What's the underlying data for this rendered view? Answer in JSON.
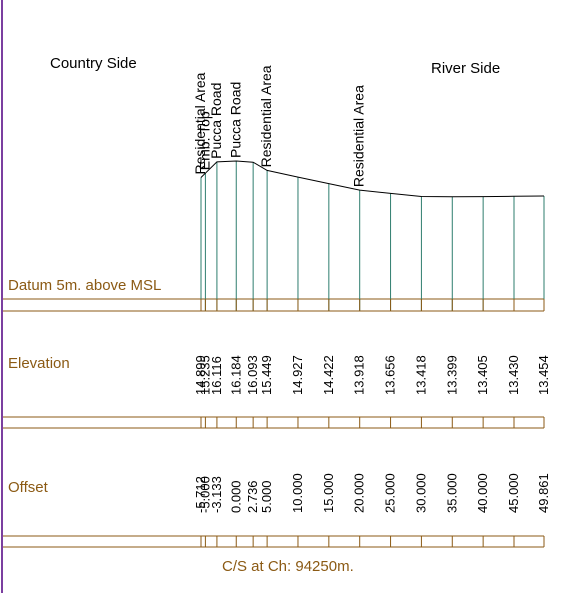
{
  "header": {
    "left_label": "Country Side",
    "right_label": "River Side"
  },
  "rows": {
    "datum": "Datum 5m. above MSL",
    "elevation": "Elevation",
    "offset": "Offset"
  },
  "footer": {
    "caption": "C/S at Ch: 94250m."
  },
  "feature_labels": [
    {
      "text": "Residential Area",
      "offset": -5.712
    },
    {
      "text": "Emb. Top",
      "offset": -5.0
    },
    {
      "text": "Pucca Road",
      "offset": -3.133
    },
    {
      "text": "Pucca Road",
      "offset": 0.0
    },
    {
      "text": "Residential Area",
      "offset": 5.0
    },
    {
      "text": "Residential Area",
      "offset": 20.0
    }
  ],
  "stations": [
    {
      "offset": -5.712,
      "offset_label": "-5.712",
      "elevation": 14.899,
      "elevation_label": "14.899"
    },
    {
      "offset": -5.0,
      "offset_label": "-5.000",
      "elevation": 15.235,
      "elevation_label": "15.235"
    },
    {
      "offset": -3.133,
      "offset_label": "-3.133",
      "elevation": 16.116,
      "elevation_label": "16.116"
    },
    {
      "offset": 0.0,
      "offset_label": "0.000",
      "elevation": 16.184,
      "elevation_label": "16.184"
    },
    {
      "offset": 2.736,
      "offset_label": "2.736",
      "elevation": 16.093,
      "elevation_label": "16.093"
    },
    {
      "offset": 5.0,
      "offset_label": "5.000",
      "elevation": 15.449,
      "elevation_label": "15.449"
    },
    {
      "offset": 10.0,
      "offset_label": "10.000",
      "elevation": 14.927,
      "elevation_label": "14.927"
    },
    {
      "offset": 15.0,
      "offset_label": "15.000",
      "elevation": 14.422,
      "elevation_label": "14.422"
    },
    {
      "offset": 20.0,
      "offset_label": "20.000",
      "elevation": 13.918,
      "elevation_label": "13.918"
    },
    {
      "offset": 25.0,
      "offset_label": "25.000",
      "elevation": 13.656,
      "elevation_label": "13.656"
    },
    {
      "offset": 30.0,
      "offset_label": "30.000",
      "elevation": 13.418,
      "elevation_label": "13.418"
    },
    {
      "offset": 35.0,
      "offset_label": "35.000",
      "elevation": 13.399,
      "elevation_label": "13.399"
    },
    {
      "offset": 40.0,
      "offset_label": "40.000",
      "elevation": 13.405,
      "elevation_label": "13.405"
    },
    {
      "offset": 45.0,
      "offset_label": "45.000",
      "elevation": 13.43,
      "elevation_label": "13.430"
    },
    {
      "offset": 49.861,
      "offset_label": "49.861",
      "elevation": 13.454,
      "elevation_label": "13.454"
    }
  ],
  "colors": {
    "frame": "#8B5A14",
    "station_line": "#2E7D6E",
    "ground_line": "#000000",
    "left_border": "#7B3FA0"
  }
}
